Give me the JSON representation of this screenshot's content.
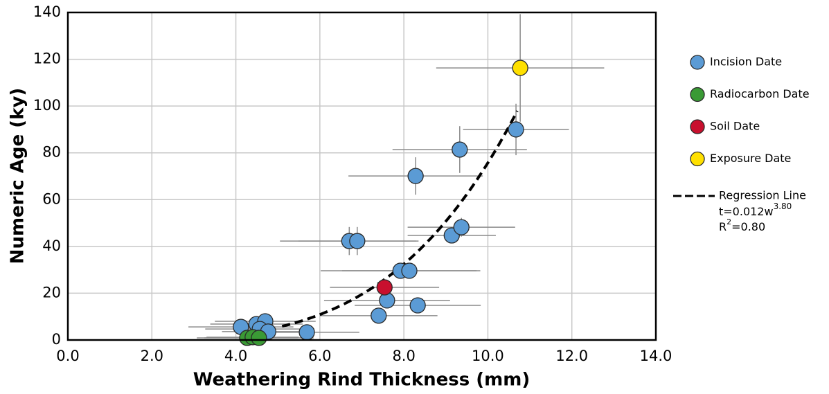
{
  "chart_data": {
    "type": "scatter",
    "xlabel": "Weathering Rind Thickness (mm)",
    "ylabel": "Numeric Age (ky)",
    "xlim": [
      0,
      14
    ],
    "ylim": [
      0,
      140
    ],
    "xticks": [
      {
        "value": 0,
        "label": "0.0"
      },
      {
        "value": 2,
        "label": "2.0"
      },
      {
        "value": 4,
        "label": "4.0"
      },
      {
        "value": 6,
        "label": "6.0"
      },
      {
        "value": 8,
        "label": "8.0"
      },
      {
        "value": 10,
        "label": "10.0"
      },
      {
        "value": 12,
        "label": "12.0"
      },
      {
        "value": 14,
        "label": "14.0"
      }
    ],
    "yticks": [
      0,
      20,
      40,
      60,
      80,
      100,
      120,
      140
    ],
    "grid": true,
    "legend": "right",
    "series": [
      {
        "name": "Incision Date",
        "color": "#5b9bd5",
        "x": [
          4.12,
          4.49,
          4.7,
          4.57,
          4.77,
          5.69,
          6.7,
          6.89,
          7.4,
          7.6,
          7.92,
          8.13,
          8.33,
          8.28,
          9.14,
          9.37,
          9.33,
          10.67
        ],
        "values": [
          5.6,
          6.8,
          8,
          4.7,
          3.6,
          3.3,
          42.3,
          42.3,
          10.4,
          16.9,
          29.6,
          29.6,
          14.8,
          70.1,
          44.7,
          48.2,
          81.4,
          90
        ],
        "xerr": [
          1.25,
          1.1,
          1.2,
          1.3,
          1.1,
          1.25,
          1.65,
          1.4,
          1.4,
          1.5,
          1.9,
          1.6,
          1.5,
          1.6,
          1.05,
          1.28,
          1.6,
          1.26
        ],
        "yerr": [
          1,
          1,
          1,
          1,
          1,
          1,
          6,
          6,
          1,
          2,
          3,
          3,
          2,
          8,
          3,
          4,
          10,
          11
        ]
      },
      {
        "name": "Radiocarbon Date",
        "color": "#3a9a35",
        "x": [
          4.27,
          4.4,
          4.55
        ],
        "values": [
          0.9,
          1.2,
          0.9
        ],
        "xerr": [
          1.2,
          1.1,
          1.3
        ],
        "yerr": [
          0.5,
          0.5,
          0.5
        ]
      },
      {
        "name": "Soil Date",
        "color": "#c8102e",
        "x": [
          7.54
        ],
        "values": [
          22.5
        ],
        "xerr": [
          1.3
        ],
        "yerr": [
          3
        ]
      },
      {
        "name": "Exposure Date",
        "color": "#ffe000",
        "x": [
          10.77
        ],
        "values": [
          116.3
        ],
        "xerr": [
          2
        ],
        "yerr": [
          23
        ]
      }
    ],
    "regression": {
      "name": "Regression Line",
      "equation": {
        "base": "t=0.012w",
        "exponent": "3.80"
      },
      "r2": {
        "base": "R",
        "sup": "2",
        "rest": "=0.80"
      },
      "coefficient": 0.012,
      "power": 3.8,
      "xrange": [
        5.1,
        10.7
      ],
      "color": "#000000"
    }
  }
}
